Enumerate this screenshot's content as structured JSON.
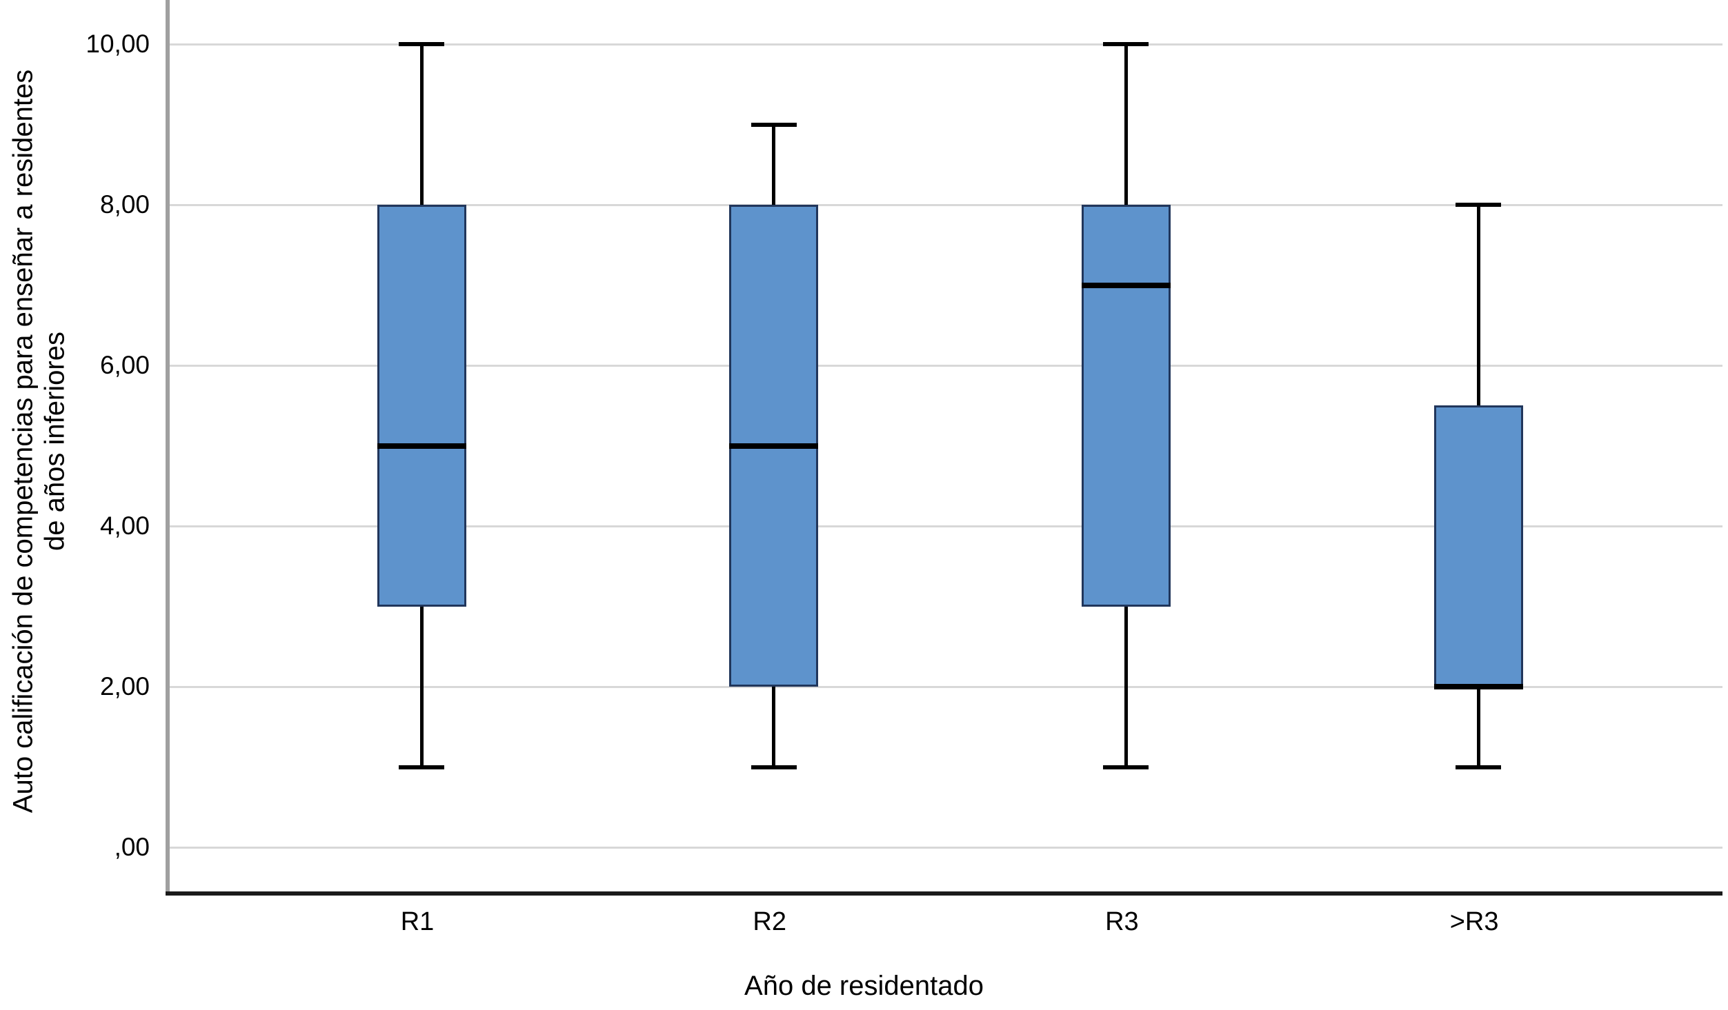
{
  "chart_data": {
    "type": "boxplot",
    "title": "",
    "xlabel": "Año de residentado",
    "ylabel": "Auto calificación de competencias para enseñar a residentes de años inferiores",
    "categories": [
      "R1",
      "R2",
      "R3",
      ">R3"
    ],
    "y_ticks": [
      {
        "value": 0,
        "label": ",00"
      },
      {
        "value": 2,
        "label": "2,00"
      },
      {
        "value": 4,
        "label": "4,00"
      },
      {
        "value": 6,
        "label": "6,00"
      },
      {
        "value": 8,
        "label": "8,00"
      },
      {
        "value": 10,
        "label": "10,00"
      }
    ],
    "ylim": [
      -0.55,
      10.55
    ],
    "grid": true,
    "legend": "none",
    "series": [
      {
        "category": "R1",
        "min": 1,
        "q1": 3,
        "median": 5,
        "q3": 8,
        "max": 10
      },
      {
        "category": "R2",
        "min": 1,
        "q1": 2,
        "median": 5,
        "q3": 8,
        "max": 9
      },
      {
        "category": "R3",
        "min": 1,
        "q1": 3,
        "median": 7,
        "q3": 8,
        "max": 10
      },
      {
        "category": ">R3",
        "min": 1,
        "q1": 2,
        "median": 2,
        "q3": 5.5,
        "max": 8
      }
    ],
    "colors": {
      "box_fill": "#5E93CC",
      "box_border": "#21365B",
      "median": "#000000",
      "whisker": "#000000",
      "gridline": "#D8D8D8",
      "y_axis": "#A0A0A0",
      "x_axis": "#1A1A1A"
    }
  }
}
